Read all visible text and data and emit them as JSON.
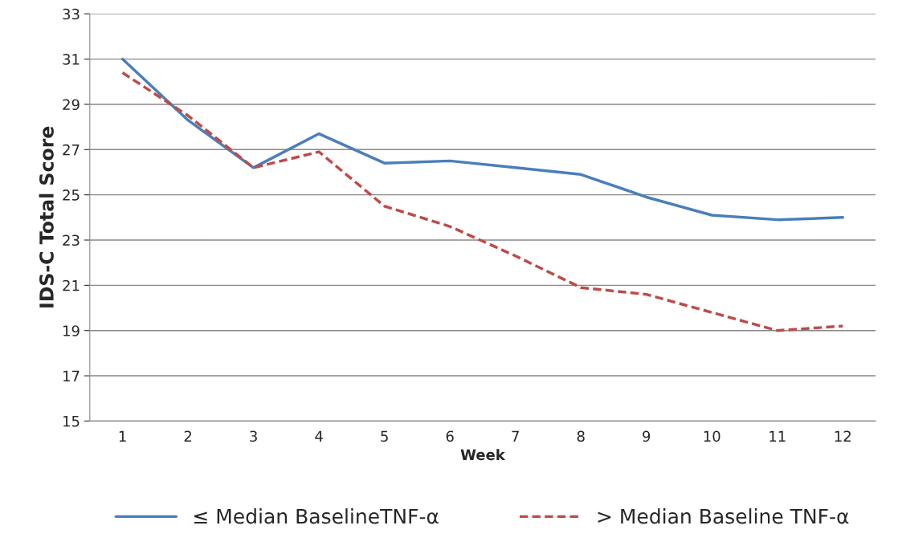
{
  "chart_data": {
    "type": "line",
    "xlabel": "Week",
    "ylabel": "IDS-C Total Score",
    "categories": [
      "1",
      "2",
      "3",
      "4",
      "5",
      "6",
      "7",
      "8",
      "9",
      "10",
      "11",
      "12"
    ],
    "series": [
      {
        "name": "≤ Median BaselineTNF-α",
        "color": "#4a7ebb",
        "line_style": "solid",
        "values": [
          31.0,
          28.3,
          26.2,
          27.7,
          26.4,
          26.5,
          26.2,
          25.9,
          24.9,
          24.1,
          23.9,
          24.0
        ]
      },
      {
        "name": "> Median Baseline TNF-α",
        "color": "#be4b48",
        "line_style": "dashed",
        "values": [
          30.4,
          28.5,
          26.2,
          26.9,
          24.5,
          23.6,
          22.3,
          20.9,
          20.6,
          19.8,
          19.0,
          19.2
        ]
      }
    ],
    "ylim": [
      15,
      33
    ],
    "yticks": [
      15,
      17,
      19,
      21,
      23,
      25,
      27,
      29,
      31,
      33
    ],
    "grid": "y",
    "legend": "bottom",
    "marker": "none"
  }
}
